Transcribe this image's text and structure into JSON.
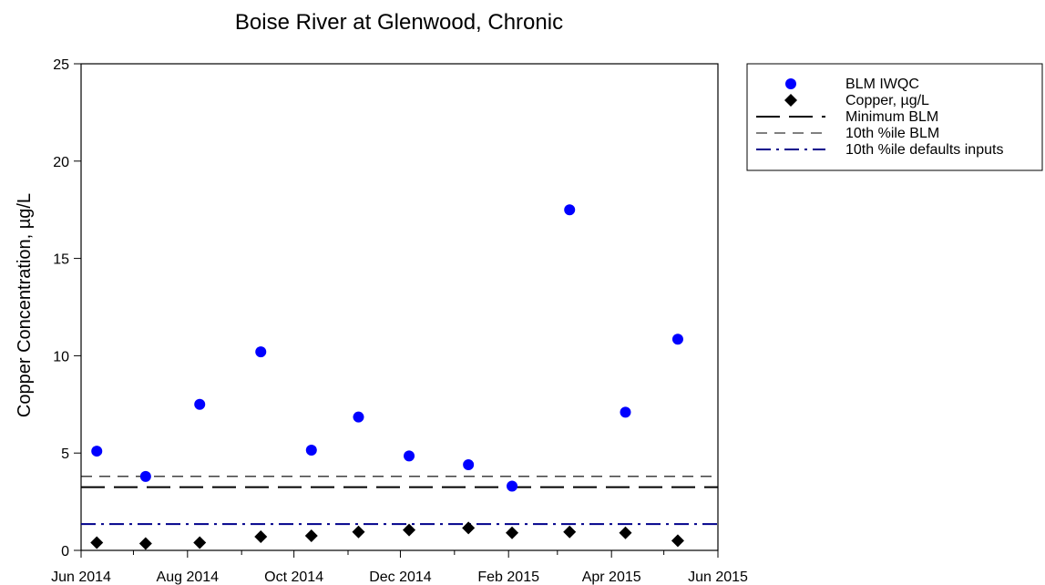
{
  "chart_data": {
    "type": "scatter",
    "title": "Boise River at Glenwood, Chronic",
    "ylabel": "Copper Concentration, µg/L",
    "xlabel": "",
    "ylim": [
      0,
      25
    ],
    "yticks": [
      0,
      5,
      10,
      15,
      20,
      25
    ],
    "xlim": [
      "2014-06-01",
      "2015-06-01"
    ],
    "xticks": [
      {
        "date": "2014-06-01",
        "label": "Jun 2014"
      },
      {
        "date": "2014-08-01",
        "label": "Aug 2014"
      },
      {
        "date": "2014-10-01",
        "label": "Oct 2014"
      },
      {
        "date": "2014-12-01",
        "label": "Dec 2014"
      },
      {
        "date": "2015-02-01",
        "label": "Feb 2015"
      },
      {
        "date": "2015-04-01",
        "label": "Apr 2015"
      },
      {
        "date": "2015-06-01",
        "label": "Jun 2015"
      }
    ],
    "grid": false,
    "legend_position": "right",
    "series": [
      {
        "name": "BLM IWQC",
        "kind": "points",
        "marker": "circle",
        "color": "#0000ff",
        "points": [
          {
            "x": "2014-06-10",
            "y": 5.1
          },
          {
            "x": "2014-07-08",
            "y": 3.8
          },
          {
            "x": "2014-08-08",
            "y": 7.5
          },
          {
            "x": "2014-09-12",
            "y": 10.2
          },
          {
            "x": "2014-10-11",
            "y": 5.15
          },
          {
            "x": "2014-11-07",
            "y": 6.85
          },
          {
            "x": "2014-12-06",
            "y": 4.85
          },
          {
            "x": "2015-01-09",
            "y": 4.4
          },
          {
            "x": "2015-02-03",
            "y": 3.3
          },
          {
            "x": "2015-03-08",
            "y": 17.5
          },
          {
            "x": "2015-04-09",
            "y": 7.1
          },
          {
            "x": "2015-05-09",
            "y": 10.85
          }
        ]
      },
      {
        "name": "Copper, µg/L",
        "kind": "points",
        "marker": "diamond",
        "color": "#000000",
        "points": [
          {
            "x": "2014-06-10",
            "y": 0.4
          },
          {
            "x": "2014-07-08",
            "y": 0.35
          },
          {
            "x": "2014-08-08",
            "y": 0.4
          },
          {
            "x": "2014-09-12",
            "y": 0.7
          },
          {
            "x": "2014-10-11",
            "y": 0.75
          },
          {
            "x": "2014-11-07",
            "y": 0.95
          },
          {
            "x": "2014-12-06",
            "y": 1.05
          },
          {
            "x": "2015-01-09",
            "y": 1.15
          },
          {
            "x": "2015-02-03",
            "y": 0.9
          },
          {
            "x": "2015-03-08",
            "y": 0.95
          },
          {
            "x": "2015-04-09",
            "y": 0.9
          },
          {
            "x": "2015-05-09",
            "y": 0.5
          }
        ]
      },
      {
        "name": "Minimum BLM",
        "kind": "hline",
        "y": 3.25,
        "color": "#000000",
        "dash": "long-dash"
      },
      {
        "name": "10th %ile BLM",
        "kind": "hline",
        "y": 3.8,
        "color": "#000000",
        "dash": "short-dash"
      },
      {
        "name": "10th %ile defaults inputs",
        "kind": "hline",
        "y": 1.35,
        "color": "#00008b",
        "dash": "dash-dot"
      }
    ]
  }
}
